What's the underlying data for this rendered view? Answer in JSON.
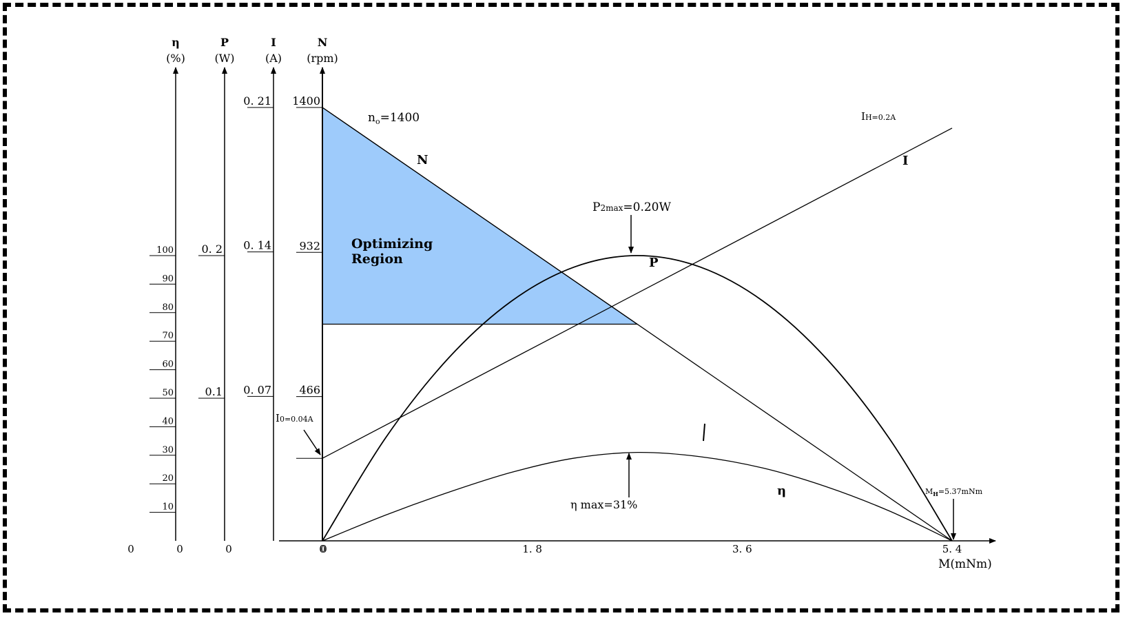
{
  "chart_data": {
    "type": "line",
    "x_axis": {
      "label": "M(mNm)",
      "ticks": [
        0,
        1.8,
        3.6,
        5.4
      ],
      "tick_labels": [
        "0",
        "1. 8",
        "3. 6",
        "5. 4"
      ],
      "range": [
        0,
        5.4
      ]
    },
    "y_axes": [
      {
        "symbol": "N",
        "unit": "(rpm)",
        "zero_label": "0",
        "ticks": [
          {
            "label": "1400",
            "value": 1400
          },
          {
            "label": "932",
            "value": 932
          },
          {
            "label": "466",
            "value": 466
          }
        ]
      },
      {
        "symbol": "I",
        "unit": "(A)",
        "zero_label": "0",
        "ticks": [
          {
            "label": "0. 21",
            "value": 0.21
          },
          {
            "label": "0. 14",
            "value": 0.14
          },
          {
            "label": "0. 07",
            "value": 0.07
          }
        ]
      },
      {
        "symbol": "P",
        "unit": "(W)",
        "zero_label": "0",
        "ticks": [
          {
            "label": "0. 2",
            "value": 0.2
          },
          {
            "label": "0.1",
            "value": 0.1
          }
        ]
      },
      {
        "symbol": "η",
        "unit": "(%)",
        "zero_label": "0",
        "ticks": [
          {
            "label": "100",
            "value": 100
          },
          {
            "label": "90",
            "value": 90
          },
          {
            "label": "80",
            "value": 80
          },
          {
            "label": "70",
            "value": 70
          },
          {
            "label": "60",
            "value": 60
          },
          {
            "label": "50",
            "value": 50
          },
          {
            "label": "40",
            "value": 40
          },
          {
            "label": "30",
            "value": 30
          },
          {
            "label": "20",
            "value": 20
          },
          {
            "label": "10",
            "value": 10
          }
        ]
      }
    ],
    "series": [
      {
        "name": "N",
        "axis": "N",
        "x": [
          0,
          5.4
        ],
        "values": [
          1400,
          0
        ]
      },
      {
        "name": "I",
        "axis": "I",
        "x": [
          0,
          5.4
        ],
        "values": [
          0.04,
          0.2
        ]
      },
      {
        "name": "P",
        "axis": "P",
        "x": [
          0,
          0.54,
          1.08,
          1.62,
          2.16,
          2.7,
          3.24,
          3.78,
          4.32,
          4.86,
          5.4
        ],
        "values": [
          0,
          0.072,
          0.128,
          0.168,
          0.192,
          0.2,
          0.192,
          0.168,
          0.128,
          0.072,
          0
        ]
      },
      {
        "name": "η",
        "axis": "η",
        "x": [
          0,
          0.54,
          1.08,
          1.62,
          2.16,
          2.7,
          3.24,
          3.78,
          4.32,
          4.86,
          5.4
        ],
        "values": [
          0,
          9,
          17,
          24,
          29,
          31,
          29.5,
          25.5,
          19,
          10.5,
          0
        ]
      }
    ],
    "region": {
      "label_line1": "Optimizing",
      "label_line2": "Region",
      "x_range": [
        0,
        2.7
      ],
      "n_range": [
        700,
        1400
      ],
      "color": "#9ecbfb"
    },
    "annotations": {
      "no_label": "n",
      "no_sub": "o",
      "no_value": "=1400",
      "p2max_main": "P",
      "p2max_sub": "2max",
      "p2max_value": "=0.20W",
      "ih_main": "I",
      "ih_sub": "H",
      "ih_value": "=0.2A",
      "i0_main": "I",
      "i0_sub": "0",
      "i0_value": "=0.04A",
      "mh_main": "M",
      "mh_sub": "H",
      "mh_value": "=5.37mNm",
      "eta_max": "η max=31%"
    },
    "grid": false
  }
}
